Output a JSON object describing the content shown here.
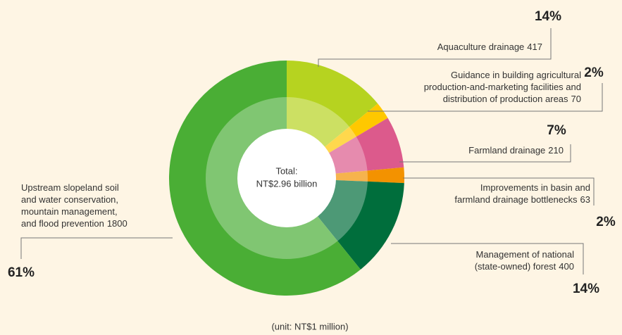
{
  "chart_data": {
    "type": "donut",
    "categories": [
      [
        "Aquaculture drainage"
      ],
      [
        "Guidance in building agricultural",
        "production-and-marketing facilities and",
        "distribution of production areas"
      ],
      [
        "Farmland drainage"
      ],
      [
        "Improvements in basin and",
        "farmland drainage bottlenecks"
      ],
      [
        "Management of national",
        "(state-owned) forest"
      ],
      [
        "Upstream slopeland soil",
        "and water conservation,",
        "mountain management,",
        "and flood prevention"
      ]
    ],
    "values": [
      417,
      70,
      210,
      63,
      400,
      1800
    ],
    "value_labels": [
      "14%",
      "2%",
      "7%",
      "2%",
      "14%",
      "61%"
    ],
    "colors": [
      "#b6d320",
      "#ffc800",
      "#dc5a8c",
      "#f39200",
      "#006e3c",
      "#4aae35"
    ],
    "center_label": [
      "Total:",
      "NT$2.96 billion"
    ],
    "note": "(unit: NT$1 million)"
  }
}
